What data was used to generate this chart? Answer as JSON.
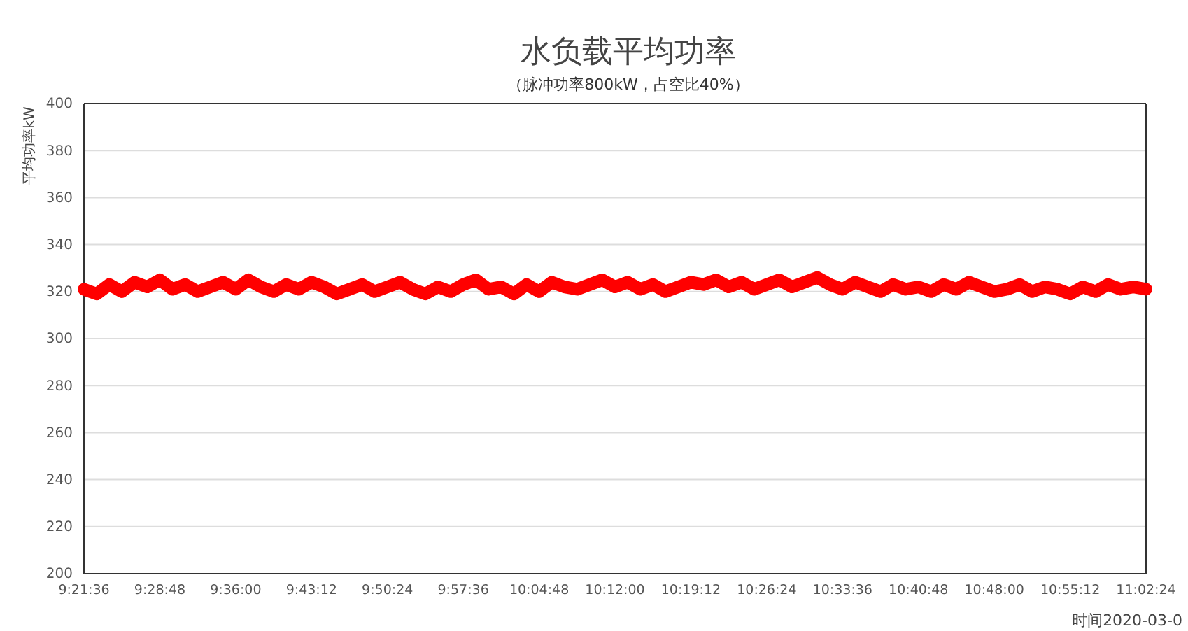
{
  "chart_data": {
    "type": "line",
    "title": "水负载平均功率",
    "subtitle": "（脉冲功率800kW，占空比40%）",
    "ylabel": "平均功率kW",
    "xlabel": "时间2020-03-0",
    "x": [
      9.36,
      9.38,
      9.4,
      9.42,
      9.44,
      9.46,
      9.48,
      9.5,
      9.52,
      9.54,
      9.56,
      9.58,
      9.6,
      9.62,
      9.64,
      9.66,
      9.68,
      9.7,
      9.72,
      9.74,
      9.76,
      9.78,
      9.8,
      9.82,
      9.84,
      9.86,
      9.88,
      9.9,
      9.92,
      9.94,
      9.96,
      9.98,
      10,
      10.02,
      10.04,
      10.06,
      10.08,
      10.1,
      10.12,
      10.14,
      10.16,
      10.18,
      10.2,
      10.22,
      10.24,
      10.26,
      10.28,
      10.3,
      10.32,
      10.34,
      10.36,
      10.38,
      10.4,
      10.42,
      10.44,
      10.46,
      10.48,
      10.5,
      10.52,
      10.54,
      10.56,
      10.58,
      10.6,
      10.62,
      10.64,
      10.66,
      10.68,
      10.7,
      10.72,
      10.74,
      10.76,
      10.78,
      10.8,
      10.82,
      10.84,
      10.86,
      10.88,
      10.9,
      10.92,
      10.94,
      10.96,
      10.98,
      11,
      11.02,
      11.04
    ],
    "series": [
      {
        "color": "#ff0000",
        "values": [
          321,
          319,
          323,
          320,
          324,
          322,
          325,
          321,
          323,
          320,
          322,
          324,
          321,
          325,
          322,
          320,
          323,
          321,
          324,
          322,
          319,
          321,
          323,
          320,
          322,
          324,
          321,
          319,
          322,
          320,
          323,
          325,
          321,
          322,
          319,
          323,
          320,
          324,
          322,
          321,
          323,
          325,
          322,
          324,
          321,
          323,
          320,
          322,
          324,
          323,
          325,
          322,
          324,
          321,
          323,
          325,
          322,
          324,
          326,
          323,
          321,
          324,
          322,
          320,
          323,
          321,
          322,
          320,
          323,
          321,
          324,
          322,
          320,
          321,
          323,
          320,
          322,
          321,
          319,
          322,
          320,
          323,
          321,
          322,
          321
        ]
      }
    ],
    "xlim": [
      9.36,
      11.04
    ],
    "xticks": [
      {
        "value": 9.36,
        "label": "9:21:36"
      },
      {
        "value": 9.48,
        "label": "9:28:48"
      },
      {
        "value": 9.6,
        "label": "9:36:00"
      },
      {
        "value": 9.72,
        "label": "9:43:12"
      },
      {
        "value": 9.84,
        "label": "9:50:24"
      },
      {
        "value": 9.96,
        "label": "9:57:36"
      },
      {
        "value": 10.08,
        "label": "10:04:48"
      },
      {
        "value": 10.2,
        "label": "10:12:00"
      },
      {
        "value": 10.32,
        "label": "10:19:12"
      },
      {
        "value": 10.44,
        "label": "10:26:24"
      },
      {
        "value": 10.56,
        "label": "10:33:36"
      },
      {
        "value": 10.68,
        "label": "10:40:48"
      },
      {
        "value": 10.8,
        "label": "10:48:00"
      },
      {
        "value": 10.92,
        "label": "10:55:12"
      },
      {
        "value": 11.04,
        "label": "11:02:24"
      }
    ],
    "ylim": [
      200,
      400
    ],
    "yticks": [
      200,
      220,
      240,
      260,
      280,
      300,
      320,
      340,
      360,
      380,
      400
    ],
    "grid": "y",
    "line_style": "solid"
  }
}
